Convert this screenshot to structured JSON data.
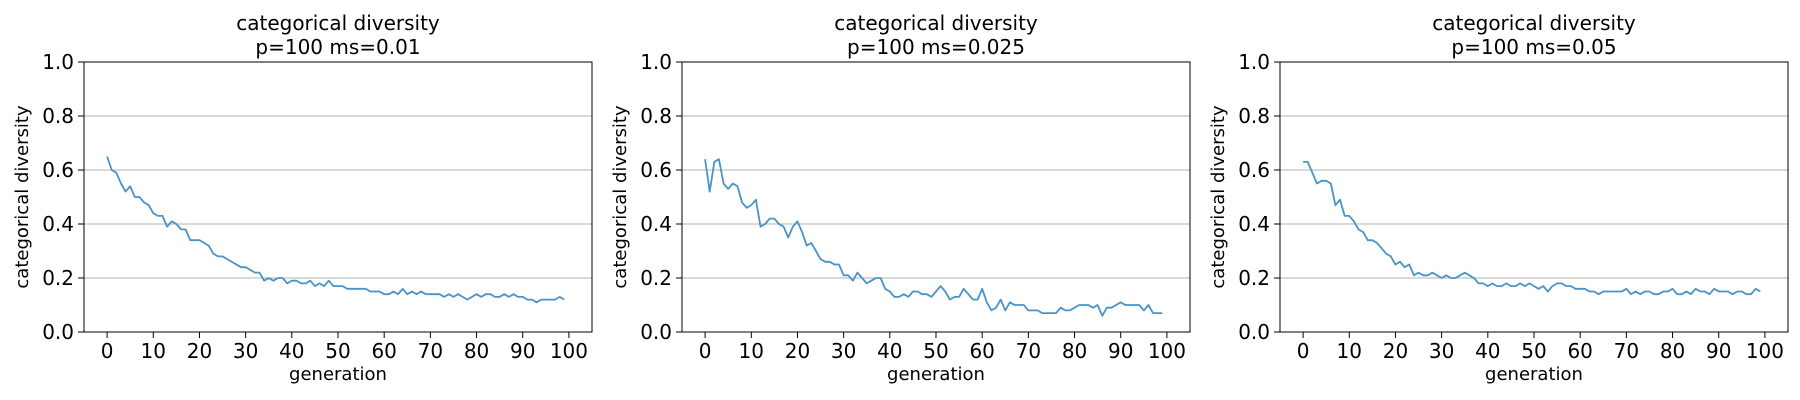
{
  "chart_data": [
    {
      "type": "line",
      "title": "categorical diversity",
      "subtitle": "p=100 ms=0.01",
      "xlabel": "generation",
      "ylabel": "categorical diversity",
      "xlim": [
        -5,
        105
      ],
      "ylim": [
        0,
        1.0
      ],
      "xticks": [
        "0",
        "10",
        "20",
        "30",
        "40",
        "50",
        "60",
        "70",
        "80",
        "90",
        "100"
      ],
      "yticks": [
        "0.0",
        "0.2",
        "0.4",
        "0.6",
        "0.8",
        "1.0"
      ],
      "grid": "horizontal",
      "color": "#4a93c7",
      "series": [
        {
          "values": [
            0.65,
            0.6,
            0.59,
            0.55,
            0.52,
            0.54,
            0.5,
            0.5,
            0.48,
            0.47,
            0.44,
            0.43,
            0.43,
            0.39,
            0.41,
            0.4,
            0.38,
            0.38,
            0.34,
            0.34,
            0.34,
            0.33,
            0.32,
            0.29,
            0.28,
            0.28,
            0.27,
            0.26,
            0.25,
            0.24,
            0.24,
            0.23,
            0.22,
            0.22,
            0.19,
            0.2,
            0.19,
            0.2,
            0.2,
            0.18,
            0.19,
            0.19,
            0.18,
            0.18,
            0.19,
            0.17,
            0.18,
            0.17,
            0.19,
            0.17,
            0.17,
            0.17,
            0.16,
            0.16,
            0.16,
            0.16,
            0.16,
            0.15,
            0.15,
            0.15,
            0.14,
            0.14,
            0.15,
            0.14,
            0.16,
            0.14,
            0.15,
            0.14,
            0.15,
            0.14,
            0.14,
            0.14,
            0.14,
            0.13,
            0.14,
            0.13,
            0.14,
            0.13,
            0.12,
            0.13,
            0.14,
            0.13,
            0.14,
            0.14,
            0.13,
            0.13,
            0.14,
            0.13,
            0.14,
            0.13,
            0.13,
            0.12,
            0.12,
            0.11,
            0.12,
            0.12,
            0.12,
            0.12,
            0.13,
            0.12
          ]
        }
      ]
    },
    {
      "type": "line",
      "title": "categorical diversity",
      "subtitle": "p=100 ms=0.025",
      "xlabel": "generation",
      "ylabel": "categorical diversity",
      "xlim": [
        -5,
        105
      ],
      "ylim": [
        0,
        1.0
      ],
      "xticks": [
        "0",
        "10",
        "20",
        "30",
        "40",
        "50",
        "60",
        "70",
        "80",
        "90",
        "100"
      ],
      "yticks": [
        "0.0",
        "0.2",
        "0.4",
        "0.6",
        "0.8",
        "1.0"
      ],
      "grid": "horizontal",
      "color": "#4a93c7",
      "series": [
        {
          "values": [
            0.64,
            0.52,
            0.63,
            0.64,
            0.55,
            0.53,
            0.55,
            0.54,
            0.48,
            0.46,
            0.47,
            0.49,
            0.39,
            0.4,
            0.42,
            0.42,
            0.4,
            0.39,
            0.35,
            0.39,
            0.41,
            0.37,
            0.32,
            0.33,
            0.3,
            0.27,
            0.26,
            0.26,
            0.25,
            0.25,
            0.21,
            0.21,
            0.19,
            0.22,
            0.2,
            0.18,
            0.19,
            0.2,
            0.2,
            0.16,
            0.15,
            0.13,
            0.13,
            0.14,
            0.13,
            0.15,
            0.15,
            0.14,
            0.14,
            0.13,
            0.15,
            0.17,
            0.15,
            0.12,
            0.13,
            0.13,
            0.16,
            0.14,
            0.12,
            0.12,
            0.16,
            0.11,
            0.08,
            0.09,
            0.12,
            0.08,
            0.11,
            0.1,
            0.1,
            0.1,
            0.08,
            0.08,
            0.08,
            0.07,
            0.07,
            0.07,
            0.07,
            0.09,
            0.08,
            0.08,
            0.09,
            0.1,
            0.1,
            0.1,
            0.09,
            0.1,
            0.06,
            0.09,
            0.09,
            0.1,
            0.11,
            0.1,
            0.1,
            0.1,
            0.1,
            0.08,
            0.1,
            0.07,
            0.07,
            0.07
          ]
        }
      ]
    },
    {
      "type": "line",
      "title": "categorical diversity",
      "subtitle": "p=100 ms=0.05",
      "xlabel": "generation",
      "ylabel": "categorical diversity",
      "xlim": [
        -5,
        105
      ],
      "ylim": [
        0,
        1.0
      ],
      "xticks": [
        "0",
        "10",
        "20",
        "30",
        "40",
        "50",
        "60",
        "70",
        "80",
        "90",
        "100"
      ],
      "yticks": [
        "0.0",
        "0.2",
        "0.4",
        "0.6",
        "0.8",
        "1.0"
      ],
      "grid": "horizontal",
      "color": "#4a93c7",
      "series": [
        {
          "values": [
            0.63,
            0.63,
            0.59,
            0.55,
            0.56,
            0.56,
            0.55,
            0.47,
            0.49,
            0.43,
            0.43,
            0.41,
            0.38,
            0.37,
            0.34,
            0.34,
            0.33,
            0.31,
            0.29,
            0.28,
            0.25,
            0.26,
            0.24,
            0.25,
            0.21,
            0.22,
            0.21,
            0.21,
            0.22,
            0.21,
            0.2,
            0.21,
            0.2,
            0.2,
            0.21,
            0.22,
            0.21,
            0.2,
            0.18,
            0.18,
            0.17,
            0.18,
            0.17,
            0.17,
            0.18,
            0.17,
            0.17,
            0.18,
            0.17,
            0.18,
            0.17,
            0.16,
            0.17,
            0.15,
            0.17,
            0.18,
            0.18,
            0.17,
            0.17,
            0.16,
            0.16,
            0.16,
            0.15,
            0.15,
            0.14,
            0.15,
            0.15,
            0.15,
            0.15,
            0.15,
            0.16,
            0.14,
            0.15,
            0.14,
            0.15,
            0.15,
            0.14,
            0.14,
            0.15,
            0.15,
            0.16,
            0.14,
            0.14,
            0.15,
            0.14,
            0.16,
            0.15,
            0.15,
            0.14,
            0.16,
            0.15,
            0.15,
            0.15,
            0.14,
            0.15,
            0.15,
            0.14,
            0.14,
            0.16,
            0.15
          ]
        }
      ]
    }
  ]
}
